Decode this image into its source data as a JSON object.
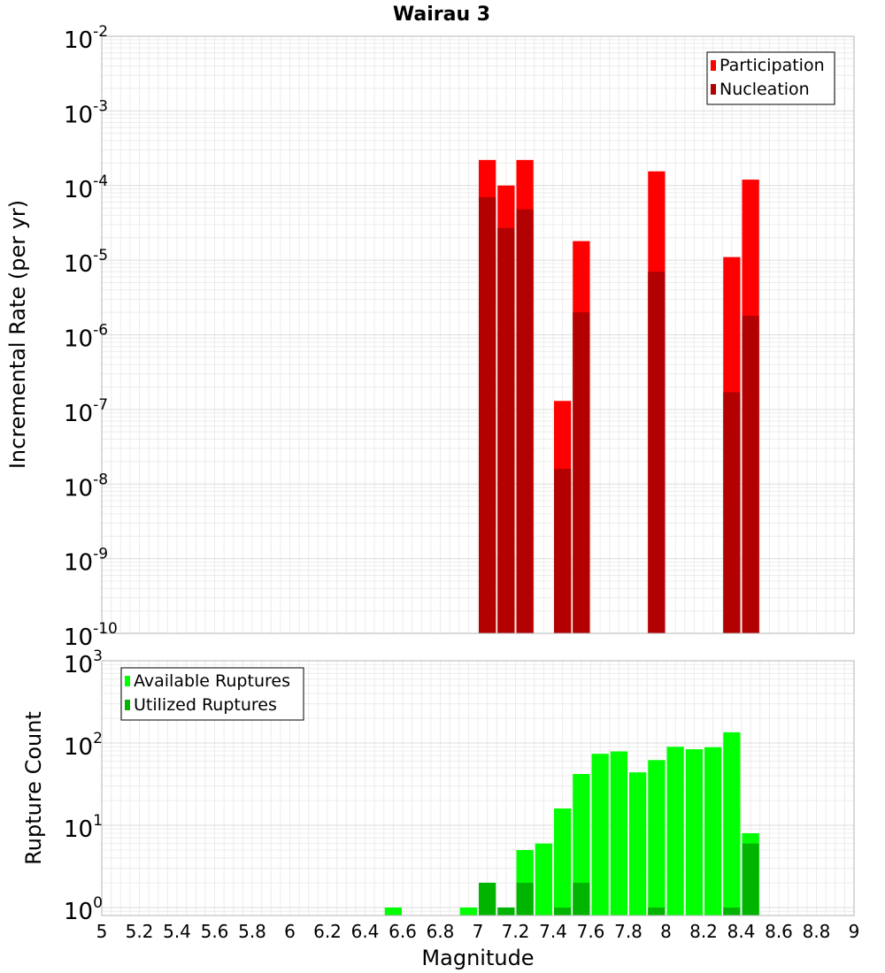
{
  "chart_data": {
    "title": "Wairau 3",
    "xlabel": "Magnitude",
    "xlim": [
      5,
      9
    ],
    "bin_width": 0.1,
    "x_ticks": [
      "5",
      "5.2",
      "5.4",
      "5.6",
      "5.8",
      "6",
      "6.2",
      "6.4",
      "6.6",
      "6.8",
      "7",
      "7.2",
      "7.4",
      "7.6",
      "7.8",
      "8",
      "8.2",
      "8.4",
      "8.6",
      "8.8",
      "9"
    ],
    "panels": [
      {
        "type": "bar",
        "scale": "log",
        "ylabel": "Incremental Rate (per yr)",
        "ylim": [
          1e-10,
          0.01
        ],
        "y_tick_exponents": [
          "-10",
          "-9",
          "-8",
          "-7",
          "-6",
          "-5",
          "-4",
          "-3",
          "-2"
        ],
        "legend": {
          "position": "top-right"
        },
        "series": [
          {
            "name": "Participation",
            "color": "#ff0000",
            "x": [
              7.05,
              7.15,
              7.25,
              7.45,
              7.55,
              7.95,
              8.35,
              8.45
            ],
            "values": [
              0.00022,
              0.0001,
              0.00022,
              1.3e-07,
              1.8e-05,
              0.000155,
              1.1e-05,
              0.00012
            ]
          },
          {
            "name": "Nucleation",
            "color": "#b30000",
            "x": [
              7.05,
              7.15,
              7.25,
              7.45,
              7.55,
              7.95,
              8.35,
              8.45
            ],
            "values": [
              7e-05,
              2.7e-05,
              4.8e-05,
              1.6e-08,
              2e-06,
              7e-06,
              1.7e-07,
              1.8e-06
            ]
          }
        ]
      },
      {
        "type": "bar",
        "scale": "log",
        "ylabel": "Rupture Count",
        "ylim": [
          0.8,
          1000
        ],
        "y_tick_exponents": [
          "0",
          "1",
          "2",
          "3"
        ],
        "legend": {
          "position": "top-left"
        },
        "series": [
          {
            "name": "Available Ruptures",
            "color": "#00ff00",
            "x": [
              6.55,
              6.95,
              7.25,
              7.35,
              7.45,
              7.55,
              7.65,
              7.75,
              7.85,
              7.95,
              8.05,
              8.15,
              8.25,
              8.35,
              8.45
            ],
            "values": [
              1,
              1,
              5,
              6,
              16,
              42,
              74,
              79,
              44,
              62,
              90,
              84,
              89,
              135,
              8
            ]
          },
          {
            "name": "Utilized Ruptures",
            "color": "#00b400",
            "x": [
              7.05,
              7.15,
              7.25,
              7.45,
              7.55,
              7.95,
              8.35,
              8.45
            ],
            "values": [
              2,
              1,
              2,
              1,
              2,
              1,
              1,
              6
            ]
          }
        ]
      }
    ]
  }
}
